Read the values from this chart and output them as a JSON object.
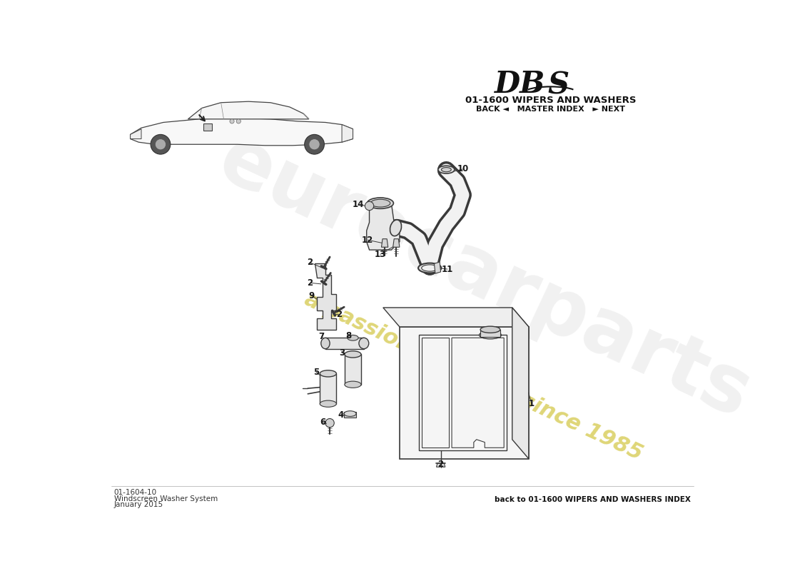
{
  "title_section": "01-1600 WIPERS AND WASHERS",
  "title_nav": "BACK ◄   MASTER INDEX   ► NEXT",
  "footer_code": "01-1604-10",
  "footer_name": "Windscreen Washer System",
  "footer_date": "January 2015",
  "footer_back": "back to 01-1600 WIPERS AND WASHERS INDEX",
  "bg_color": "#ffffff",
  "line_color": "#3a3a3a",
  "label_color": "#1a1a1a",
  "watermark_yellow": "#d4c84a",
  "watermark_grey": "#c8c8c8"
}
